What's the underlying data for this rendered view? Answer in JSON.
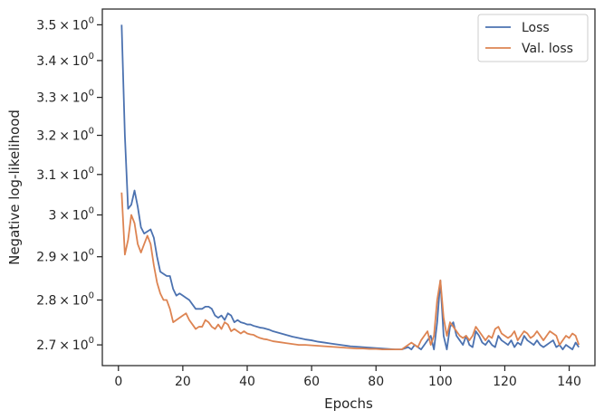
{
  "chart_data": {
    "type": "line",
    "xlabel": "Epochs",
    "ylabel": "Negative log-likelihood",
    "xlim": [
      -5,
      148
    ],
    "ylim": [
      2.655,
      3.545
    ],
    "y_scale": "log",
    "x_ticks": [
      0,
      20,
      40,
      60,
      80,
      100,
      120,
      140
    ],
    "x_tick_labels": [
      "0",
      "20",
      "40",
      "60",
      "80",
      "100",
      "120",
      "140"
    ],
    "y_ticks": [
      2.7,
      2.8,
      2.9,
      3.0,
      3.1,
      3.2,
      3.3,
      3.4,
      3.5
    ],
    "y_tick_mantissas": [
      "2.7",
      "2.8",
      "2.9",
      "3",
      "3.1",
      "3.2",
      "3.3",
      "3.4",
      "3.5"
    ],
    "y_tick_times": "×",
    "y_tick_base": "10",
    "y_tick_exponent": "0",
    "grid": false,
    "legend_position": "top-right",
    "colors": {
      "Loss": "#4c72b0",
      "Val. loss": "#dd8452",
      "axes": "#262626"
    },
    "series": [
      {
        "name": "Loss",
        "x": [
          1,
          2,
          3,
          4,
          5,
          6,
          7,
          8,
          9,
          10,
          11,
          12,
          13,
          14,
          15,
          16,
          17,
          18,
          19,
          20,
          21,
          22,
          23,
          24,
          25,
          26,
          27,
          28,
          29,
          30,
          31,
          32,
          33,
          34,
          35,
          36,
          37,
          38,
          39,
          40,
          41,
          42,
          43,
          44,
          45,
          46,
          47,
          48,
          49,
          50,
          52,
          54,
          56,
          58,
          60,
          62,
          64,
          66,
          68,
          70,
          72,
          74,
          76,
          78,
          80,
          82,
          84,
          86,
          88,
          90,
          91,
          92,
          93,
          94,
          95,
          96,
          97,
          98,
          99,
          100,
          101,
          102,
          103,
          104,
          105,
          106,
          107,
          108,
          109,
          110,
          111,
          112,
          113,
          114,
          115,
          116,
          117,
          118,
          119,
          120,
          121,
          122,
          123,
          124,
          125,
          126,
          127,
          128,
          129,
          130,
          131,
          132,
          133,
          134,
          135,
          136,
          137,
          138,
          139,
          140,
          141,
          142,
          143
        ],
        "values": [
          3.5,
          3.2,
          3.015,
          3.025,
          3.06,
          3.02,
          2.97,
          2.955,
          2.96,
          2.965,
          2.945,
          2.9,
          2.865,
          2.86,
          2.855,
          2.855,
          2.825,
          2.81,
          2.815,
          2.81,
          2.805,
          2.8,
          2.79,
          2.78,
          2.78,
          2.78,
          2.785,
          2.785,
          2.78,
          2.765,
          2.76,
          2.765,
          2.755,
          2.77,
          2.765,
          2.75,
          2.755,
          2.75,
          2.748,
          2.745,
          2.745,
          2.742,
          2.74,
          2.738,
          2.737,
          2.735,
          2.733,
          2.73,
          2.728,
          2.726,
          2.722,
          2.718,
          2.715,
          2.712,
          2.71,
          2.707,
          2.705,
          2.703,
          2.701,
          2.699,
          2.697,
          2.696,
          2.695,
          2.694,
          2.693,
          2.692,
          2.691,
          2.69,
          2.69,
          2.695,
          2.69,
          2.7,
          2.695,
          2.69,
          2.7,
          2.71,
          2.72,
          2.69,
          2.75,
          2.845,
          2.72,
          2.69,
          2.74,
          2.75,
          2.72,
          2.71,
          2.7,
          2.72,
          2.7,
          2.695,
          2.73,
          2.72,
          2.705,
          2.7,
          2.71,
          2.7,
          2.695,
          2.72,
          2.71,
          2.705,
          2.7,
          2.71,
          2.695,
          2.705,
          2.7,
          2.72,
          2.71,
          2.705,
          2.7,
          2.71,
          2.7,
          2.695,
          2.7,
          2.705,
          2.71,
          2.695,
          2.7,
          2.69,
          2.7,
          2.695,
          2.69,
          2.705,
          2.695
        ]
      },
      {
        "name": "Val. loss",
        "x": [
          1,
          2,
          3,
          4,
          5,
          6,
          7,
          8,
          9,
          10,
          11,
          12,
          13,
          14,
          15,
          16,
          17,
          18,
          19,
          20,
          21,
          22,
          23,
          24,
          25,
          26,
          27,
          28,
          29,
          30,
          31,
          32,
          33,
          34,
          35,
          36,
          37,
          38,
          39,
          40,
          41,
          42,
          43,
          44,
          45,
          46,
          47,
          48,
          49,
          50,
          52,
          54,
          56,
          58,
          60,
          62,
          64,
          66,
          68,
          70,
          72,
          74,
          76,
          78,
          80,
          82,
          84,
          86,
          88,
          90,
          91,
          92,
          93,
          94,
          95,
          96,
          97,
          98,
          99,
          100,
          101,
          102,
          103,
          104,
          105,
          106,
          107,
          108,
          109,
          110,
          111,
          112,
          113,
          114,
          115,
          116,
          117,
          118,
          119,
          120,
          121,
          122,
          123,
          124,
          125,
          126,
          127,
          128,
          129,
          130,
          131,
          132,
          133,
          134,
          135,
          136,
          137,
          138,
          139,
          140,
          141,
          142,
          143
        ],
        "values": [
          3.055,
          2.905,
          2.94,
          3.0,
          2.98,
          2.93,
          2.91,
          2.93,
          2.95,
          2.93,
          2.88,
          2.84,
          2.815,
          2.8,
          2.8,
          2.78,
          2.75,
          2.755,
          2.76,
          2.765,
          2.77,
          2.755,
          2.745,
          2.735,
          2.74,
          2.74,
          2.755,
          2.75,
          2.74,
          2.735,
          2.745,
          2.735,
          2.75,
          2.745,
          2.73,
          2.735,
          2.73,
          2.725,
          2.73,
          2.725,
          2.723,
          2.722,
          2.718,
          2.715,
          2.713,
          2.712,
          2.71,
          2.708,
          2.707,
          2.706,
          2.704,
          2.702,
          2.7,
          2.7,
          2.699,
          2.698,
          2.697,
          2.696,
          2.695,
          2.694,
          2.693,
          2.692,
          2.692,
          2.691,
          2.691,
          2.69,
          2.69,
          2.69,
          2.69,
          2.7,
          2.705,
          2.7,
          2.695,
          2.71,
          2.72,
          2.73,
          2.7,
          2.72,
          2.8,
          2.845,
          2.76,
          2.72,
          2.75,
          2.74,
          2.73,
          2.72,
          2.715,
          2.72,
          2.71,
          2.72,
          2.74,
          2.73,
          2.72,
          2.71,
          2.72,
          2.715,
          2.735,
          2.74,
          2.725,
          2.72,
          2.715,
          2.72,
          2.73,
          2.71,
          2.72,
          2.73,
          2.725,
          2.715,
          2.72,
          2.73,
          2.72,
          2.71,
          2.72,
          2.73,
          2.725,
          2.72,
          2.7,
          2.71,
          2.72,
          2.715,
          2.725,
          2.72,
          2.7
        ]
      }
    ]
  }
}
